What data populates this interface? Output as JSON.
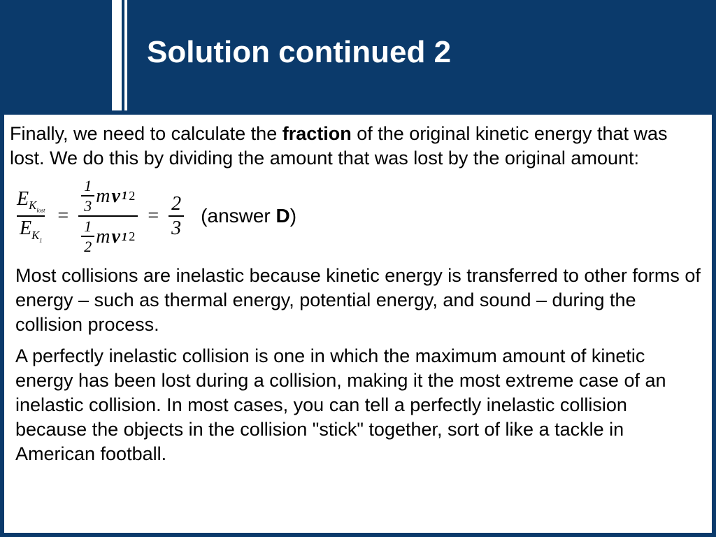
{
  "header": {
    "title": "Solution continued 2",
    "accent_color": "#0b3a6b",
    "title_color": "#ffffff",
    "title_fontsize": 44
  },
  "body": {
    "background": "#ffffff",
    "fontsize": 27,
    "intro": {
      "pre": "Finally, we need to calculate the ",
      "bold": "fraction",
      "post": " of the original kinetic energy that was lost. We do this by dividing the amount that was lost by the original amount:"
    },
    "equation": {
      "lhs_num": "E",
      "lhs_num_sub": "K",
      "lhs_num_subsub": "lost",
      "lhs_den": "E",
      "lhs_den_sub": "K",
      "lhs_den_subsub": "1",
      "mid_num_coef_top": "1",
      "mid_num_coef_bot": "3",
      "mid_num_var1": "m",
      "mid_num_var2": "v",
      "mid_num_var2_sub": "1",
      "mid_num_exp": "2",
      "mid_den_coef_top": "1",
      "mid_den_coef_bot": "2",
      "mid_den_var1": "m",
      "mid_den_var2": "v",
      "mid_den_var2_sub": "1",
      "mid_den_exp": "2",
      "rhs_top": "2",
      "rhs_bot": "3",
      "answer_pre": "(answer ",
      "answer_bold": "D",
      "answer_post": ")"
    },
    "para2": "Most collisions are inelastic because kinetic energy is transferred to other forms of energy – such as thermal energy, potential energy, and sound – during the collision process.",
    "para3": "A perfectly inelastic collision is one in which the maximum amount of kinetic energy has been lost during a collision, making it the most extreme case of an inelastic collision. In most cases, you can tell a perfectly inelastic collision because the objects in the collision \"stick\" together, sort of like a tackle in American football."
  }
}
